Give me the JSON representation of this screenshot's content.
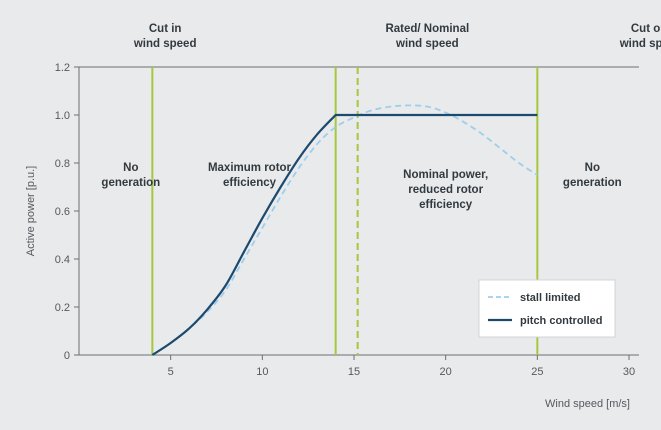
{
  "chart_data": {
    "type": "line",
    "xlabel": "Wind speed [m/s]",
    "ylabel": "Active power [p.u.]",
    "xlim": [
      0,
      30
    ],
    "ylim": [
      0,
      1.2
    ],
    "xticks": [
      5,
      10,
      15,
      20,
      25,
      30
    ],
    "yticks": [
      0,
      0.2,
      0.4,
      0.6,
      0.8,
      1.0,
      1.2
    ],
    "xtick_labels": [
      "5",
      "10",
      "15",
      "20",
      "25",
      "30"
    ],
    "ytick_labels": [
      "0",
      "0.2",
      "0.4",
      "0.6",
      "0.8",
      "1.0",
      "1.2"
    ],
    "series": [
      {
        "name": "stall limited",
        "style": "dashed",
        "color": "#9fcdec",
        "x": [
          4,
          5,
          6,
          7,
          8,
          9,
          10,
          11,
          12,
          13,
          14,
          15,
          16,
          17,
          18,
          19,
          20,
          21,
          22,
          23,
          24,
          25
        ],
        "y": [
          0.0,
          0.05,
          0.11,
          0.18,
          0.27,
          0.4,
          0.53,
          0.66,
          0.78,
          0.88,
          0.95,
          0.99,
          1.02,
          1.035,
          1.04,
          1.035,
          1.01,
          0.97,
          0.92,
          0.86,
          0.8,
          0.75
        ]
      },
      {
        "name": "pitch controlled",
        "style": "solid",
        "color": "#1c4a6e",
        "x": [
          4,
          5,
          6,
          7,
          8,
          9,
          10,
          11,
          12,
          13,
          14,
          15,
          16,
          17,
          18,
          19,
          20,
          21,
          22,
          23,
          24,
          25
        ],
        "y": [
          0.0,
          0.05,
          0.11,
          0.19,
          0.29,
          0.43,
          0.57,
          0.7,
          0.82,
          0.92,
          1.0,
          1.0,
          1.0,
          1.0,
          1.0,
          1.0,
          1.0,
          1.0,
          1.0,
          1.0,
          1.0,
          1.0
        ]
      }
    ],
    "vertical_lines": [
      {
        "x": 4,
        "style": "solid",
        "color": "#a6c83c"
      },
      {
        "x": 14,
        "style": "solid",
        "color": "#a6c83c"
      },
      {
        "x": 15.2,
        "style": "dashed",
        "color": "#a6c83c"
      },
      {
        "x": 25,
        "style": "solid",
        "color": "#a6c83c"
      }
    ],
    "top_annotations": [
      {
        "lines": [
          "Cut in",
          "wind speed"
        ],
        "x": 0.1
      },
      {
        "lines": [
          "Rated/ Nominal",
          "wind speed"
        ],
        "x": 14.4
      },
      {
        "lines": [
          "Cut out",
          "wind speed"
        ],
        "x": 26.6
      }
    ],
    "region_annotations": [
      {
        "lines": [
          "No",
          "generation"
        ],
        "x": 0.1,
        "y": 0.8
      },
      {
        "lines": [
          "Maximum rotor",
          "efficiency"
        ],
        "x": 9.3,
        "y": 0.8
      },
      {
        "lines": [
          "Nominal power,",
          "reduced rotor",
          "efficiency"
        ],
        "x": 20.0,
        "y": 0.77
      },
      {
        "lines": [
          "No",
          "generation"
        ],
        "x": 28.0,
        "y": 0.8
      }
    ],
    "legend_position": "bottom-right",
    "grid": false
  }
}
